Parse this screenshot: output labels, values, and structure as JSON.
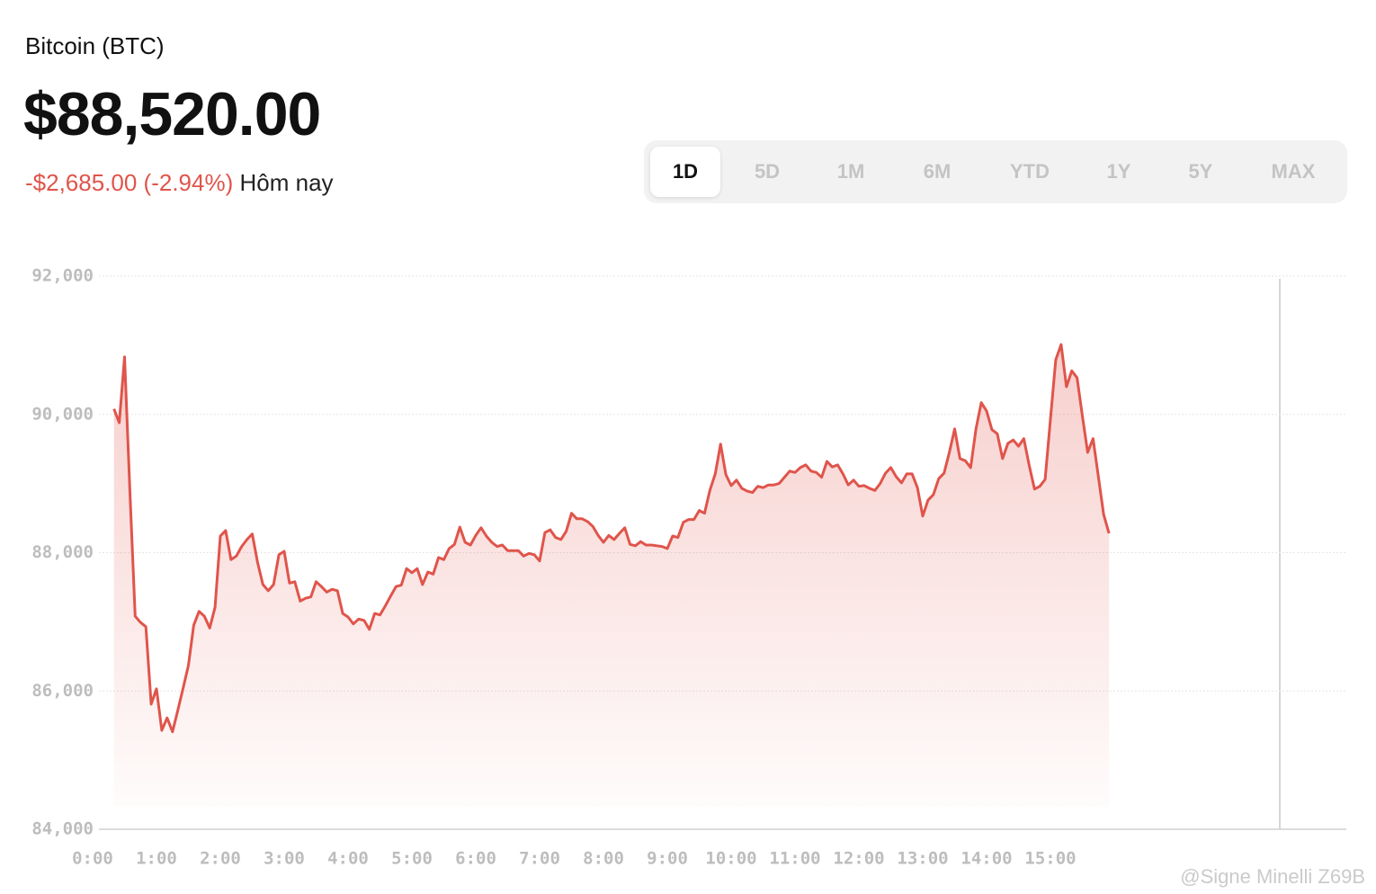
{
  "header": {
    "title": "Bitcoin (BTC)",
    "price": "$88,520.00",
    "change": "-$2,685.00 (-2.94%)",
    "period": "Hôm nay"
  },
  "ranges": {
    "items": [
      "1D",
      "5D",
      "1M",
      "6M",
      "YTD",
      "1Y",
      "5Y",
      "MAX"
    ],
    "selected": "1D"
  },
  "watermark": "@Signe Minelli Z69B",
  "chart_data": {
    "type": "area",
    "color": "#e0544b",
    "grid": true,
    "ylim": [
      84000,
      92000
    ],
    "yticks": [
      {
        "value": 84000,
        "label": "84,000"
      },
      {
        "value": 86000,
        "label": "86,000"
      },
      {
        "value": 88000,
        "label": "88,000"
      },
      {
        "value": 90000,
        "label": "90,000"
      },
      {
        "value": 92000,
        "label": "92,000"
      }
    ],
    "xlim": [
      0,
      1178
    ],
    "xticks": [
      {
        "value": 0,
        "label": "0:00"
      },
      {
        "value": 60,
        "label": "1:00"
      },
      {
        "value": 120,
        "label": "2:00"
      },
      {
        "value": 180,
        "label": "3:00"
      },
      {
        "value": 240,
        "label": "4:00"
      },
      {
        "value": 300,
        "label": "5:00"
      },
      {
        "value": 360,
        "label": "6:00"
      },
      {
        "value": 420,
        "label": "7:00"
      },
      {
        "value": 480,
        "label": "8:00"
      },
      {
        "value": 540,
        "label": "9:00"
      },
      {
        "value": 600,
        "label": "10:00"
      },
      {
        "value": 660,
        "label": "11:00"
      },
      {
        "value": 720,
        "label": "12:00"
      },
      {
        "value": 780,
        "label": "13:00"
      },
      {
        "value": 840,
        "label": "14:00"
      },
      {
        "value": 900,
        "label": "15:00"
      }
    ],
    "x": [
      20,
      25,
      30,
      35,
      40,
      45,
      50,
      55,
      60,
      65,
      70,
      75,
      80,
      85,
      90,
      95,
      100,
      105,
      110,
      115,
      120,
      125,
      130,
      135,
      140,
      145,
      150,
      155,
      160,
      165,
      170,
      175,
      180,
      185,
      190,
      195,
      200,
      205,
      210,
      215,
      220,
      225,
      230,
      235,
      240,
      245,
      250,
      255,
      260,
      265,
      270,
      275,
      280,
      285,
      290,
      295,
      300,
      305,
      310,
      315,
      320,
      325,
      330,
      335,
      340,
      345,
      350,
      355,
      360,
      365,
      370,
      375,
      380,
      385,
      390,
      395,
      400,
      405,
      410,
      415,
      420,
      425,
      430,
      435,
      440,
      445,
      450,
      455,
      460,
      465,
      470,
      475,
      480,
      485,
      490,
      495,
      500,
      505,
      510,
      515,
      520,
      525,
      530,
      535,
      540,
      545,
      550,
      555,
      560,
      565,
      570,
      575,
      580,
      585,
      590,
      595,
      600,
      605,
      610,
      615,
      620,
      625,
      630,
      635,
      640,
      645,
      650,
      655,
      660,
      665,
      670,
      675,
      680,
      685,
      690,
      695,
      700,
      705,
      710,
      715,
      720,
      725,
      730,
      735,
      740,
      745,
      750,
      755,
      760,
      765,
      770,
      775,
      780,
      785,
      790,
      795,
      800,
      805,
      810,
      815,
      820,
      825,
      830,
      835,
      840,
      845,
      850,
      855,
      860,
      865,
      870,
      875,
      880,
      885,
      890,
      895,
      900,
      905,
      910,
      915,
      920,
      925,
      930,
      935,
      940,
      945,
      950,
      955
    ],
    "values": [
      90080,
      89880,
      90830,
      88900,
      87080,
      86990,
      86930,
      85810,
      86030,
      85430,
      85610,
      85410,
      85720,
      86040,
      86370,
      86950,
      87150,
      87080,
      86910,
      87210,
      88240,
      88320,
      87900,
      87950,
      88090,
      88190,
      88270,
      87860,
      87540,
      87450,
      87540,
      87970,
      88020,
      87560,
      87580,
      87300,
      87340,
      87360,
      87580,
      87510,
      87430,
      87470,
      87450,
      87120,
      87070,
      86970,
      87040,
      87020,
      86890,
      87120,
      87100,
      87230,
      87370,
      87510,
      87530,
      87770,
      87710,
      87770,
      87540,
      87720,
      87690,
      87930,
      87900,
      88060,
      88120,
      88370,
      88150,
      88110,
      88250,
      88360,
      88240,
      88150,
      88090,
      88110,
      88030,
      88030,
      88030,
      87950,
      87990,
      87970,
      87880,
      88290,
      88330,
      88220,
      88190,
      88310,
      88570,
      88490,
      88490,
      88450,
      88380,
      88250,
      88150,
      88250,
      88190,
      88280,
      88360,
      88120,
      88100,
      88160,
      88110,
      88110,
      88100,
      88090,
      88060,
      88240,
      88220,
      88440,
      88480,
      88480,
      88610,
      88570,
      88900,
      89140,
      89570,
      89130,
      88970,
      89050,
      88930,
      88890,
      88870,
      88960,
      88940,
      88980,
      88980,
      89000,
      89090,
      89180,
      89160,
      89230,
      89270,
      89180,
      89160,
      89090,
      89320,
      89240,
      89270,
      89140,
      88980,
      89050,
      88960,
      88970,
      88930,
      88900,
      89000,
      89150,
      89230,
      89100,
      89010,
      89140,
      89140,
      88940,
      88530,
      88760,
      88840,
      89070,
      89150,
      89450,
      89790,
      89360,
      89330,
      89230,
      89790,
      90170,
      90050,
      89780,
      89720,
      89360,
      89580,
      89630,
      89540,
      89650,
      89260,
      88920,
      88960,
      89060,
      89930,
      90790,
      91010,
      90400,
      90630,
      90530,
      89980,
      89450,
      89650,
      89100,
      88550,
      88280
    ]
  }
}
